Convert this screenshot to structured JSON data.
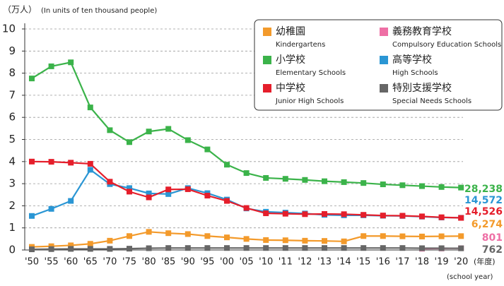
{
  "chart_data": {
    "type": "line",
    "y_label": "（万人）",
    "y_label_en": "(In units of ten thousand people)",
    "x_label": "(年度)",
    "x_label_en": "(school year)",
    "categories": [
      "'50",
      "'55",
      "'60",
      "'65",
      "'70",
      "'75",
      "'80",
      "'85",
      "'90",
      "'95",
      "'00",
      "'05",
      "'10",
      "'11",
      "'12",
      "'13",
      "'14",
      "'15",
      "'16",
      "'17",
      "'18",
      "'19",
      "'20"
    ],
    "ylim": [
      0,
      10
    ],
    "yticks": [
      0,
      1,
      2,
      3,
      4,
      5,
      6,
      7,
      8,
      9,
      10
    ],
    "grid": true,
    "series": [
      {
        "name": "幼稚園",
        "name_en": "Kindergartens",
        "color": "#f39a2b",
        "values": [
          0.14,
          0.17,
          0.21,
          0.28,
          0.42,
          0.63,
          0.82,
          0.76,
          0.72,
          0.63,
          0.57,
          0.5,
          0.45,
          0.44,
          0.42,
          0.41,
          0.39,
          0.63,
          0.63,
          0.62,
          0.61,
          0.62,
          0.6274
        ],
        "value_labels": [
          null,
          null,
          null,
          null,
          null,
          null,
          null,
          null,
          null,
          null,
          null,
          null,
          null,
          null,
          null,
          null,
          null,
          null,
          null,
          null,
          null,
          null,
          "6,274"
        ]
      },
      {
        "name": "義務教育学校",
        "name_en": "Compulsory Education Schools",
        "color": "#ee6fa5",
        "values": [
          null,
          null,
          null,
          null,
          null,
          null,
          null,
          null,
          null,
          null,
          null,
          null,
          null,
          null,
          null,
          null,
          null,
          null,
          null,
          null,
          0.06,
          0.07,
          0.0801
        ],
        "value_labels": [
          null,
          null,
          null,
          null,
          null,
          null,
          null,
          null,
          null,
          null,
          null,
          null,
          null,
          null,
          null,
          null,
          null,
          null,
          null,
          null,
          null,
          null,
          "801"
        ]
      },
      {
        "name": "小学校",
        "name_en": "Elementary Schools",
        "color": "#3bb34a",
        "values": [
          7.76,
          8.31,
          8.49,
          6.45,
          5.42,
          4.88,
          5.36,
          5.48,
          4.97,
          4.55,
          3.86,
          3.48,
          3.26,
          3.22,
          3.17,
          3.11,
          3.07,
          3.03,
          2.97,
          2.93,
          2.89,
          2.85,
          2.8238
        ],
        "value_labels": [
          null,
          null,
          null,
          null,
          null,
          null,
          null,
          null,
          null,
          null,
          null,
          null,
          null,
          null,
          null,
          null,
          null,
          null,
          null,
          null,
          null,
          null,
          "28,238"
        ]
      },
      {
        "name": "高等学校",
        "name_en": "High Schools",
        "color": "#2a96d4",
        "values": [
          1.54,
          1.86,
          2.22,
          3.63,
          2.98,
          2.8,
          2.56,
          2.53,
          2.8,
          2.57,
          2.28,
          1.88,
          1.73,
          1.69,
          1.65,
          1.59,
          1.57,
          1.57,
          1.55,
          1.54,
          1.51,
          1.47,
          1.4572
        ],
        "value_labels": [
          null,
          null,
          null,
          null,
          null,
          null,
          null,
          null,
          null,
          null,
          null,
          null,
          null,
          null,
          null,
          null,
          null,
          null,
          null,
          null,
          null,
          null,
          "14,572"
        ]
      },
      {
        "name": "中学校",
        "name_en": "Junior High Schools",
        "color": "#e51e2b",
        "values": [
          4.0,
          3.99,
          3.95,
          3.9,
          3.09,
          2.64,
          2.38,
          2.74,
          2.75,
          2.46,
          2.22,
          1.9,
          1.66,
          1.64,
          1.62,
          1.63,
          1.62,
          1.59,
          1.56,
          1.55,
          1.52,
          1.48,
          1.4526
        ],
        "value_labels": [
          null,
          null,
          null,
          null,
          null,
          null,
          null,
          null,
          null,
          null,
          null,
          null,
          null,
          null,
          null,
          null,
          null,
          null,
          null,
          null,
          null,
          null,
          "14,526"
        ]
      },
      {
        "name": "特別支援学校",
        "name_en": "Special Needs Schools",
        "color": "#666666",
        "values": [
          0.03,
          0.04,
          0.05,
          0.05,
          0.05,
          0.06,
          0.08,
          0.09,
          0.09,
          0.09,
          0.09,
          0.09,
          0.09,
          0.09,
          0.09,
          0.09,
          0.09,
          0.09,
          0.09,
          0.09,
          0.08,
          0.08,
          0.0762
        ],
        "value_labels": [
          null,
          null,
          null,
          null,
          null,
          null,
          null,
          null,
          null,
          null,
          null,
          null,
          null,
          null,
          null,
          null,
          null,
          null,
          null,
          null,
          null,
          null,
          "762"
        ]
      }
    ]
  }
}
